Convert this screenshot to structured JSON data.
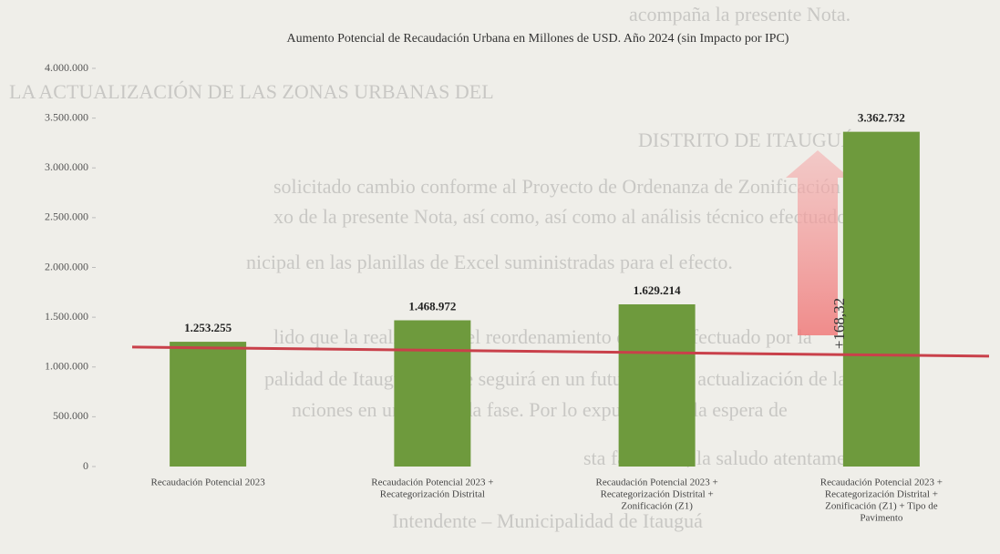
{
  "chart_data": {
    "type": "bar",
    "title": "Aumento Potencial de Recaudación Urbana en Millones de USD. Año 2024 (sin Impacto por IPC)",
    "categories": [
      [
        "Recaudación Potencial 2023"
      ],
      [
        "Recaudación Potencial 2023 +",
        "Recategorización Distrital"
      ],
      [
        "Recaudación Potencial 2023 +",
        "Recategorización Distrital +",
        "Zonificación (Z1)"
      ],
      [
        "Recaudación Potencial 2023 +",
        "Recategorización Distrital +",
        "Zonificación (Z1) + Tipo de",
        "Pavimento"
      ]
    ],
    "values": [
      1253255,
      1468972,
      1629214,
      3362732
    ],
    "value_labels": [
      "1.253.255",
      "1.468.972",
      "1.629.214",
      "3.362.732"
    ],
    "color": "#6e9a3d",
    "ylim": [
      0,
      4000000
    ],
    "yticks": [
      0,
      {
        "value": 500000,
        "label": "500.000"
      },
      {
        "value": 1000000,
        "label": "1.000.000"
      },
      {
        "value": 1500000,
        "label": "1.500.000"
      },
      {
        "value": 2000000,
        "label": "2.000.000"
      },
      {
        "value": 2500000,
        "label": "2.500.000"
      },
      {
        "value": 3000000,
        "label": "3.000.000"
      },
      {
        "value": 3500000,
        "label": "3.500.000"
      },
      {
        "value": 4000000,
        "label": "4.000.000"
      }
    ],
    "reference_line": {
      "value": 1200000,
      "color": "#c9404a"
    },
    "annotation": "+168,32",
    "background_text": [
      "acompaña la presente Nota.",
      "LA ACTUALIZACIÓN DE LAS ZONAS URBANAS DEL",
      "DISTRITO DE ITAUGUÁ.",
      "solicitado cambio conforme al Proyecto de Ordenanza de Zonificación en",
      "xo de la presente Nota, así como, así como al análisis técnico efectuado por el",
      "nicipal en las planillas de Excel suministradas para el efecto.",
      "lido que la realización del reordenamiento distrital efectuado por la",
      "palidad de Itauguá, que se seguirá en un futuro con la actualización de las",
      "nciones en una segunda fase. Por lo expuesto, y a la espera de",
      "sta favorable, la saludo atentamente.",
      "Intendente – Municipalidad de Itauguá"
    ]
  }
}
